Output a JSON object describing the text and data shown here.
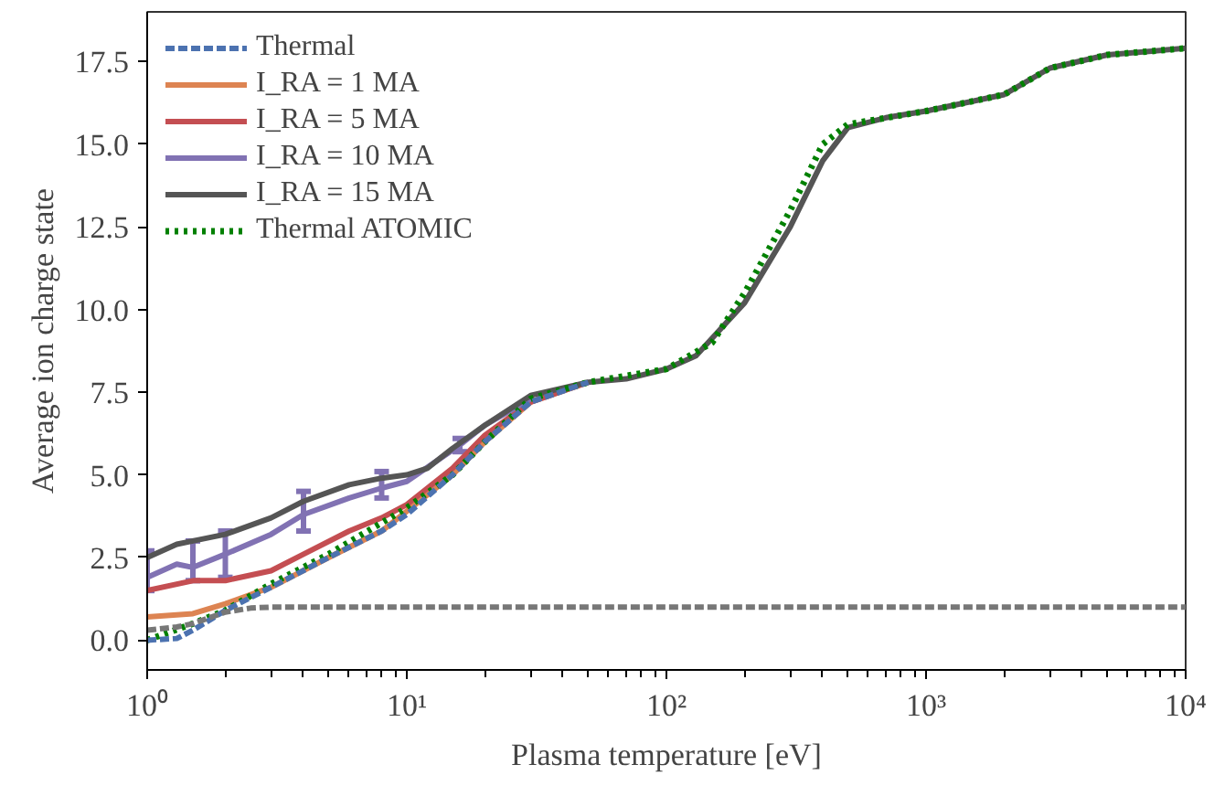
{
  "chart_data": {
    "type": "line",
    "xlabel": "Plasma temperature [eV]",
    "ylabel": "Average ion charge state",
    "log": "x",
    "xlim": [
      1,
      10000
    ],
    "ylim": [
      -0.9,
      19.0
    ],
    "xticks": [
      {
        "value": 1,
        "label": "10⁰"
      },
      {
        "value": 10,
        "label": "10¹"
      },
      {
        "value": 100,
        "label": "10²"
      },
      {
        "value": 1000,
        "label": "10³"
      },
      {
        "value": 10000,
        "label": "10⁴"
      }
    ],
    "yticks": [
      {
        "value": 0,
        "label": "0.0"
      },
      2.5,
      {
        "value": 5,
        "label": "5.0"
      },
      7.5,
      {
        "value": 10,
        "label": "10.0"
      },
      12.5,
      {
        "value": 15,
        "label": "15.0"
      },
      17.5
    ],
    "grid": false,
    "legend": "top left",
    "series": [
      {
        "name": "Thermal",
        "color": "#4c72b0",
        "line_style": "dashed",
        "x": [
          1,
          1.3,
          1.5,
          2,
          3,
          5,
          8,
          10,
          15,
          20,
          30,
          50
        ],
        "values": [
          0.0,
          0.05,
          0.3,
          0.9,
          1.6,
          2.5,
          3.3,
          3.8,
          5.0,
          6.0,
          7.2,
          7.8
        ]
      },
      {
        "name": "I_RA = 1 MA",
        "color": "#dd8452",
        "x": [
          1,
          1.5,
          2,
          3,
          5,
          8,
          10,
          15,
          20,
          30,
          50
        ],
        "values": [
          0.7,
          0.8,
          1.1,
          1.6,
          2.5,
          3.3,
          3.9,
          5.0,
          6.0,
          7.2,
          7.8
        ]
      },
      {
        "name": "I_RA = 5 MA",
        "color": "#c44e52",
        "x": [
          1,
          1.5,
          2,
          3,
          4,
          6,
          8,
          10,
          15,
          20,
          30,
          50
        ],
        "values": [
          1.5,
          1.8,
          1.8,
          2.1,
          2.6,
          3.3,
          3.7,
          4.1,
          5.2,
          6.2,
          7.2,
          7.8
        ]
      },
      {
        "name": "I_RA = 10 MA",
        "color": "#8172b3",
        "x": [
          1,
          1.3,
          1.5,
          2,
          3,
          4,
          6,
          8,
          10,
          16,
          20,
          30
        ],
        "values": [
          1.9,
          2.3,
          2.2,
          2.6,
          3.2,
          3.8,
          4.3,
          4.6,
          4.8,
          5.9,
          6.5,
          7.3
        ],
        "errors": [
          [
            1.5,
            2.7
          ],
          null,
          [
            1.8,
            3.0
          ],
          [
            1.9,
            3.3
          ],
          null,
          [
            3.3,
            4.5
          ],
          null,
          [
            4.3,
            5.1
          ],
          null,
          [
            5.7,
            6.1
          ],
          null,
          null
        ]
      },
      {
        "name": "I_RA = 15 MA",
        "color": "#555555",
        "x": [
          1,
          1.3,
          1.5,
          2,
          3,
          4,
          6,
          8,
          10,
          12,
          15,
          20,
          30,
          50,
          70,
          100,
          130,
          200,
          300,
          400,
          500,
          700,
          1000,
          2000,
          3000,
          5000,
          10000
        ],
        "values": [
          2.5,
          2.9,
          3.0,
          3.2,
          3.7,
          4.2,
          4.7,
          4.9,
          5.0,
          5.2,
          5.8,
          6.5,
          7.4,
          7.8,
          7.9,
          8.2,
          8.6,
          10.2,
          12.5,
          14.5,
          15.5,
          15.8,
          16.0,
          16.5,
          17.3,
          17.7,
          17.9
        ]
      },
      {
        "name": "Thermal ATOMIC",
        "color": "#008000",
        "line_style": "dotted",
        "x": [
          1,
          1.5,
          2,
          3,
          5,
          10,
          15,
          20,
          30,
          50,
          100,
          150,
          200,
          300,
          400,
          500,
          1000,
          2000,
          3000,
          5000,
          10000
        ],
        "values": [
          0.0,
          0.5,
          0.9,
          1.7,
          2.6,
          4.0,
          5.0,
          6.0,
          7.3,
          7.8,
          8.2,
          9.0,
          10.5,
          13.0,
          15.0,
          15.6,
          16.0,
          16.5,
          17.3,
          17.7,
          17.9
        ]
      },
      {
        "color": "#777777",
        "line_style": "dashed",
        "x": [
          1,
          1.3,
          1.5,
          2,
          2.5,
          3,
          10000
        ],
        "values": [
          0.3,
          0.4,
          0.5,
          0.85,
          0.97,
          1.0,
          1.0
        ]
      }
    ]
  }
}
